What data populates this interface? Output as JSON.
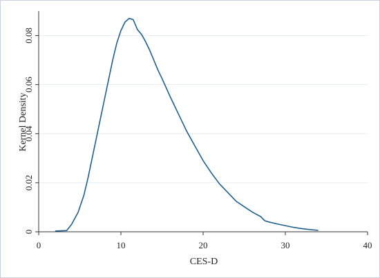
{
  "chart_data": {
    "type": "line",
    "title": "",
    "xlabel": "CES-D",
    "ylabel": "Kernel Density",
    "xlim": [
      0,
      40
    ],
    "ylim": [
      0,
      0.09
    ],
    "xticks": [
      0,
      10,
      20,
      30,
      40
    ],
    "yticks": [
      0,
      0.02,
      0.04,
      0.06,
      0.08
    ],
    "ytick_labels": [
      "0",
      "0.02",
      "0.04",
      "0.06",
      "0.08"
    ],
    "grid": "horizontal",
    "line_color": "#1f5f8b",
    "series": [
      {
        "x": [
          2,
          3.4,
          4,
          4.8,
          5.5,
          6,
          7,
          8,
          9,
          9.5,
          10,
          10.5,
          11,
          11.5,
          12,
          12.5,
          13,
          13.5,
          14,
          14.5,
          15,
          16,
          17,
          18,
          19,
          20,
          21,
          22,
          23,
          24,
          25,
          26,
          27,
          27.5,
          28,
          29,
          30,
          31,
          32,
          33,
          34
        ],
        "y": [
          0.0003,
          0.0005,
          0.003,
          0.008,
          0.015,
          0.022,
          0.038,
          0.054,
          0.07,
          0.077,
          0.082,
          0.0855,
          0.087,
          0.0865,
          0.0825,
          0.0805,
          0.0775,
          0.074,
          0.07,
          0.066,
          0.0625,
          0.055,
          0.048,
          0.041,
          0.035,
          0.029,
          0.024,
          0.0195,
          0.016,
          0.0125,
          0.0102,
          0.008,
          0.0062,
          0.0045,
          0.004,
          0.0032,
          0.0025,
          0.0018,
          0.0013,
          0.0009,
          0.0006
        ]
      }
    ]
  }
}
